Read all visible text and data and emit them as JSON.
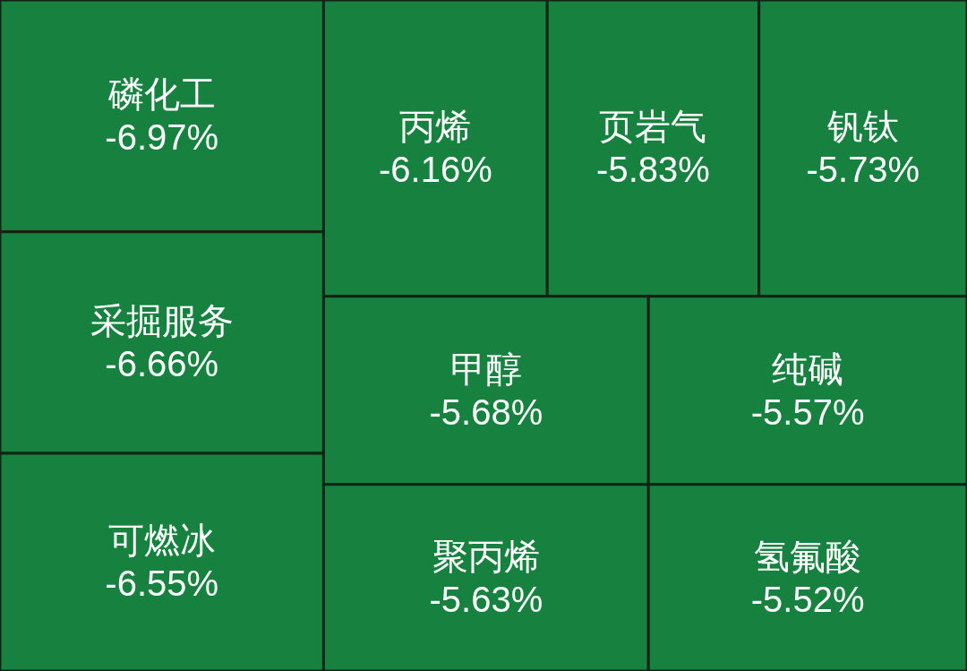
{
  "chart_data": {
    "type": "other",
    "categories": [
      "磷化工",
      "采掘服务",
      "可燃冰",
      "丙烯",
      "页岩气",
      "钒钛",
      "甲醇",
      "聚丙烯",
      "纯碱",
      "氢氟酸"
    ],
    "values": [
      -6.97,
      -6.66,
      -6.55,
      -6.16,
      -5.83,
      -5.73,
      -5.68,
      -5.63,
      -5.57,
      -5.52
    ],
    "value_labels": [
      "-6.97%",
      "-6.66%",
      "-6.55%",
      "-6.16%",
      "-5.83%",
      "-5.73%",
      "-5.68%",
      "-5.63%",
      "-5.57%",
      "-5.52%"
    ],
    "color": "#17823f"
  }
}
